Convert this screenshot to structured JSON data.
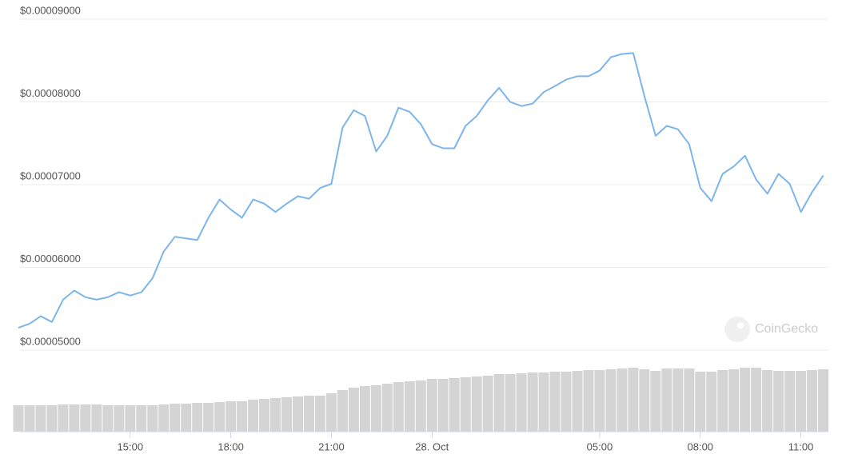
{
  "chart_data": [
    {
      "type": "line",
      "watermark": "CoinGecko",
      "categories": [
        null,
        null,
        null,
        null,
        null,
        null,
        null,
        null,
        null,
        null,
        "15:00",
        null,
        null,
        null,
        null,
        null,
        null,
        null,
        null,
        "18:00",
        null,
        null,
        null,
        null,
        null,
        null,
        null,
        null,
        "21:00",
        null,
        null,
        null,
        null,
        null,
        null,
        null,
        null,
        "28. Oct",
        null,
        null,
        null,
        null,
        null,
        null,
        null,
        null,
        null,
        null,
        null,
        null,
        null,
        null,
        "05:00",
        null,
        null,
        null,
        null,
        null,
        null,
        null,
        null,
        "08:00",
        null,
        null,
        null,
        null,
        null,
        null,
        null,
        null,
        "11:00",
        null,
        null
      ],
      "series": [
        {
          "color": "#7cb5ec",
          "values": [
            5.27e-05,
            5.32e-05,
            5.41e-05,
            5.34e-05,
            5.61e-05,
            5.72e-05,
            5.64e-05,
            5.61e-05,
            5.64e-05,
            5.7e-05,
            5.66e-05,
            5.7e-05,
            5.87e-05,
            6.19e-05,
            6.37e-05,
            6.35e-05,
            6.33e-05,
            6.6e-05,
            6.82e-05,
            6.7e-05,
            6.6e-05,
            6.82e-05,
            6.77e-05,
            6.67e-05,
            6.77e-05,
            6.86e-05,
            6.83e-05,
            6.96e-05,
            7.01e-05,
            7.69e-05,
            7.9e-05,
            7.83e-05,
            7.4e-05,
            7.59e-05,
            7.93e-05,
            7.88e-05,
            7.73e-05,
            7.49e-05,
            7.44e-05,
            7.44e-05,
            7.71e-05,
            7.83e-05,
            8.02e-05,
            8.17e-05,
            8e-05,
            7.95e-05,
            7.98e-05,
            8.12e-05,
            8.19e-05,
            8.27e-05,
            8.31e-05,
            8.31e-05,
            8.38e-05,
            8.54e-05,
            8.58e-05,
            8.59e-05,
            8.07e-05,
            7.59e-05,
            7.71e-05,
            7.67e-05,
            7.49e-05,
            6.96e-05,
            6.8e-05,
            7.13e-05,
            7.22e-05,
            7.35e-05,
            7.06e-05,
            6.89e-05,
            7.13e-05,
            7.01e-05,
            6.67e-05,
            6.91e-05,
            7.11e-05
          ]
        }
      ],
      "ylim": [
        5e-05,
        9e-05
      ],
      "yticks": [
        {
          "value": 5e-05,
          "label": "$0.00005000"
        },
        {
          "value": 6e-05,
          "label": "$0.00006000"
        },
        {
          "value": 7e-05,
          "label": "$0.00007000"
        },
        {
          "value": 8e-05,
          "label": "$0.00008000"
        },
        {
          "value": 9e-05,
          "label": "$0.00009000"
        }
      ],
      "grid": true
    },
    {
      "type": "bar",
      "color": "#d4d4d4",
      "ylim": [
        0,
        100
      ],
      "values": [
        33,
        33,
        33,
        33,
        34,
        34,
        34,
        34,
        33,
        33,
        33,
        33,
        33,
        34,
        35,
        35,
        36,
        36,
        37,
        38,
        38,
        40,
        41,
        42,
        43,
        44,
        45,
        45,
        48,
        52,
        55,
        57,
        58,
        60,
        62,
        63,
        64,
        66,
        66,
        67,
        68,
        69,
        70,
        72,
        72,
        73,
        74,
        74,
        75,
        75,
        76,
        77,
        77,
        78,
        79,
        80,
        78,
        76,
        79,
        79,
        79,
        75,
        75,
        77,
        78,
        80,
        80,
        77,
        76,
        76,
        76,
        77,
        78
      ]
    }
  ]
}
